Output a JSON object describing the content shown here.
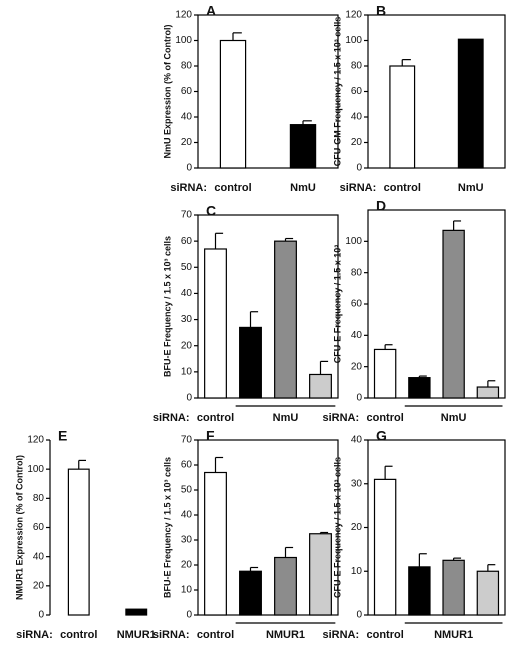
{
  "chart_data": [
    {
      "type": "bar",
      "panel": "A",
      "y_label": "NmU Expression (% of Control)",
      "x_prefix": "siRNA:",
      "categories": [
        "control",
        "NmU"
      ],
      "values": [
        100,
        34
      ],
      "errors": [
        6,
        3
      ],
      "colors": [
        "#ffffff",
        "#000000"
      ],
      "ylim": [
        0,
        120
      ],
      "yticks": [
        0,
        20,
        40,
        60,
        80,
        100,
        120
      ],
      "frame": true
    },
    {
      "type": "bar",
      "panel": "B",
      "y_label": "CFU-GM Frequency / 1.5 x 10³ cells",
      "x_prefix": "siRNA:",
      "categories": [
        "control",
        "NmU"
      ],
      "values": [
        80,
        101
      ],
      "errors": [
        5,
        null
      ],
      "colors": [
        "#ffffff",
        "#000000"
      ],
      "ylim": [
        0,
        120
      ],
      "yticks": [
        0,
        20,
        40,
        60,
        80,
        100,
        120
      ],
      "frame": true
    },
    {
      "type": "bar",
      "panel": "C",
      "y_label": "BFU-E Frequency / 1.5 x 10³ cells",
      "x_prefix": "siRNA:",
      "categories": [
        "control",
        null,
        null,
        null
      ],
      "group_label": "NmU",
      "values": [
        57,
        27,
        60,
        9
      ],
      "errors": [
        6,
        6,
        1,
        5
      ],
      "colors": [
        "#ffffff",
        "#000000",
        "#8c8c8c",
        "#cccccc"
      ],
      "ylim": [
        0,
        70
      ],
      "yticks": [
        0,
        10,
        20,
        30,
        40,
        50,
        60,
        70
      ],
      "frame": true
    },
    {
      "type": "bar",
      "panel": "D",
      "y_label": "CFU-E Frequency / 1.5 x 10³",
      "x_prefix": "siRNA:",
      "categories": [
        "control",
        null,
        null,
        null
      ],
      "group_label": "NmU",
      "values": [
        31,
        13,
        107,
        7
      ],
      "errors": [
        3,
        1,
        6,
        4
      ],
      "colors": [
        "#ffffff",
        "#000000",
        "#8c8c8c",
        "#cccccc"
      ],
      "ylim": [
        0,
        120
      ],
      "yticks": [
        0,
        20,
        40,
        60,
        80,
        100
      ],
      "frame": true
    },
    {
      "type": "bar",
      "panel": "E",
      "y_label": "NMUR1 Expression (% of Control)",
      "x_prefix": "siRNA:",
      "categories": [
        "control",
        "NMUR1"
      ],
      "values": [
        100,
        4
      ],
      "errors": [
        6,
        null
      ],
      "colors": [
        "#ffffff",
        "#000000"
      ],
      "ylim": [
        0,
        120
      ],
      "yticks": [
        0,
        20,
        40,
        60,
        80,
        100,
        120
      ],
      "frame": false
    },
    {
      "type": "bar",
      "panel": "F",
      "y_label": "BFU-E Frequency / 1.5 x 10³ cells",
      "x_prefix": "siRNA:",
      "categories": [
        "control",
        null,
        null,
        null
      ],
      "group_label": "NMUR1",
      "values": [
        57,
        17.5,
        23,
        32.5
      ],
      "errors": [
        6,
        1.5,
        4,
        0.5
      ],
      "colors": [
        "#ffffff",
        "#000000",
        "#8c8c8c",
        "#cccccc"
      ],
      "ylim": [
        0,
        70
      ],
      "yticks": [
        0,
        10,
        20,
        30,
        40,
        50,
        60,
        70
      ],
      "frame": true
    },
    {
      "type": "bar",
      "panel": "G",
      "y_label": "CFU-E Frequency / 1.5 x 10³ cells",
      "x_prefix": "siRNA:",
      "categories": [
        "control",
        null,
        null,
        null
      ],
      "group_label": "NMUR1",
      "values": [
        31,
        11,
        12.5,
        10
      ],
      "errors": [
        3,
        3,
        0.5,
        1.5
      ],
      "colors": [
        "#ffffff",
        "#000000",
        "#8c8c8c",
        "#cccccc"
      ],
      "ylim": [
        0,
        40
      ],
      "yticks": [
        0,
        10,
        20,
        30,
        40
      ],
      "frame": true
    }
  ]
}
